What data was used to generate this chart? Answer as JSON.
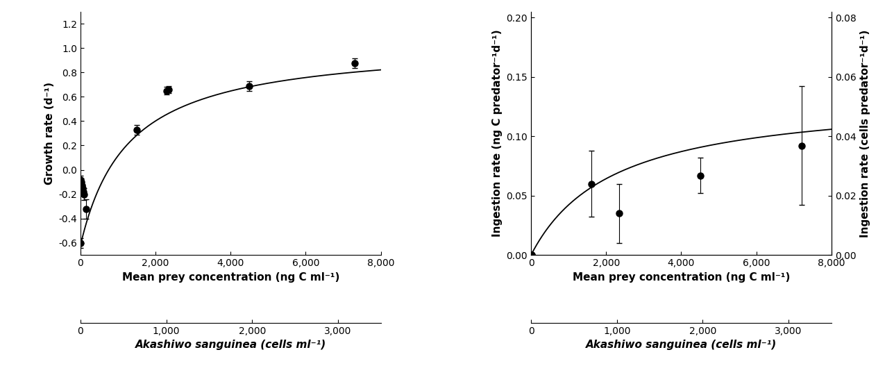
{
  "left": {
    "x_ngC": [
      0,
      10,
      20,
      30,
      50,
      80,
      100,
      150,
      1500,
      2300,
      2350,
      4500,
      7300
    ],
    "y_growth": [
      -0.6,
      -0.08,
      -0.1,
      -0.13,
      -0.15,
      -0.18,
      -0.2,
      -0.32,
      0.33,
      0.65,
      0.66,
      0.69,
      0.875
    ],
    "y_err": [
      0.04,
      0.03,
      0.03,
      0.03,
      0.03,
      0.03,
      0.05,
      0.08,
      0.04,
      0.03,
      0.03,
      0.04,
      0.04
    ],
    "curve_params": {
      "mu_max": 1.67,
      "Ks": 1270,
      "mu_0": -0.62
    },
    "xlim": [
      0,
      8000
    ],
    "ylim": [
      -0.7,
      1.3
    ],
    "yticks": [
      -0.6,
      -0.4,
      -0.2,
      0.0,
      0.2,
      0.4,
      0.6,
      0.8,
      1.0,
      1.2
    ],
    "xticks_ngC": [
      0,
      2000,
      4000,
      6000,
      8000
    ],
    "xticks_cells": [
      0,
      1000,
      2000,
      3000
    ],
    "cells_max": 3500,
    "xlabel": "Mean prey concentration (ng C ml⁻¹)",
    "xlabel2": "Akashiwo sanguinea (cells ml⁻¹)",
    "ylabel": "Growth rate (d⁻¹)"
  },
  "right": {
    "x_ngC": [
      0,
      5,
      10,
      20,
      1600,
      2350,
      4500,
      7200
    ],
    "y_ingestion": [
      0.0,
      0.0,
      0.0,
      0.0,
      0.06,
      0.035,
      0.067,
      0.092
    ],
    "y_err": [
      0.0,
      0.0,
      0.0,
      0.0,
      0.028,
      0.025,
      0.015,
      0.05
    ],
    "curve_params": {
      "I_max": 0.135,
      "Ks": 2200
    },
    "xlim": [
      0,
      8000
    ],
    "ylim": [
      0,
      0.205
    ],
    "ylim_right": [
      0,
      0.082
    ],
    "yticks": [
      0.0,
      0.05,
      0.1,
      0.15,
      0.2
    ],
    "yticks_right": [
      0.0,
      0.02,
      0.04,
      0.06,
      0.08
    ],
    "xticks_ngC": [
      0,
      2000,
      4000,
      6000,
      8000
    ],
    "xticks_cells": [
      0,
      1000,
      2000,
      3000
    ],
    "cells_max": 3500,
    "xlabel": "Mean prey concentration (ng C ml⁻¹)",
    "xlabel2": "Akashiwo sanguinea (cells ml⁻¹)",
    "ylabel_left": "Ingestion rate (ng C predator⁻¹d⁻¹)",
    "ylabel_right": "Ingestion rate (cells predator⁻¹d⁻¹)"
  },
  "marker_size": 6.5,
  "capsize": 3,
  "curve_lw": 1.3,
  "tick_labelsize": 10,
  "axis_labelsize": 11
}
